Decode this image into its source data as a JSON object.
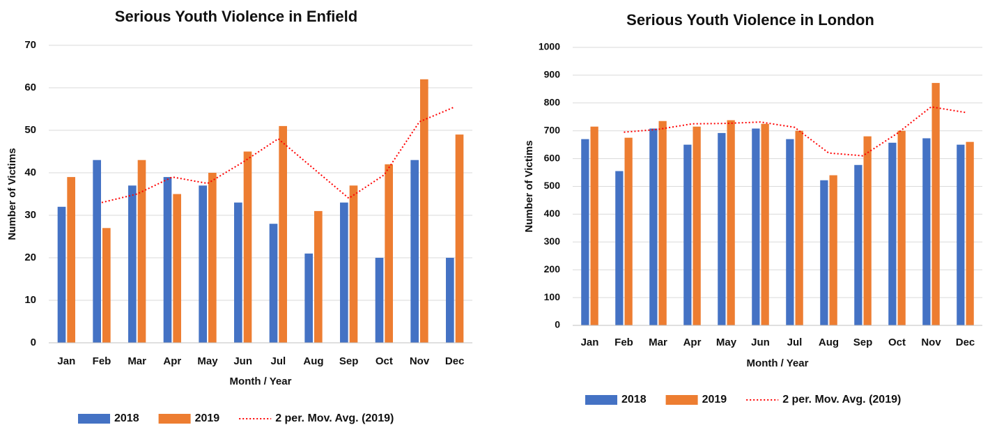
{
  "chart_data": [
    {
      "type": "bar",
      "title": "Serious Youth Violence in Enfield",
      "x_label": "Month / Year",
      "y_label": "Number of Victims",
      "categories": [
        "Jan",
        "Feb",
        "Mar",
        "Apr",
        "May",
        "Jun",
        "Jul",
        "Aug",
        "Sep",
        "Oct",
        "Nov",
        "Dec"
      ],
      "series": [
        {
          "name": "2018",
          "color": "#4472c4",
          "values": [
            32,
            43,
            37,
            39,
            37,
            33,
            28,
            21,
            33,
            20,
            43,
            20
          ]
        },
        {
          "name": "2019",
          "color": "#ed7d31",
          "values": [
            39,
            27,
            43,
            35,
            40,
            45,
            51,
            31,
            37,
            42,
            62,
            49
          ]
        },
        {
          "name": "2 per. Mov. Avg. (2019)",
          "type": "line",
          "dash": "dotted",
          "color": "#ff0000",
          "values": [
            null,
            33,
            35,
            39,
            37.5,
            42.5,
            48,
            41,
            34,
            39.5,
            52,
            55.5
          ]
        }
      ],
      "ylim": [
        0,
        70
      ],
      "yticks": [
        0,
        10,
        20,
        30,
        40,
        50,
        60,
        70
      ],
      "grid": true,
      "legend": "bottom"
    },
    {
      "type": "bar",
      "title": "Serious Youth Violence in London",
      "x_label": "Month / Year",
      "y_label": "Number of Victims",
      "categories": [
        "Jan",
        "Feb",
        "Mar",
        "Apr",
        "May",
        "Jun",
        "Jul",
        "Aug",
        "Sep",
        "Oct",
        "Nov",
        "Dec"
      ],
      "series": [
        {
          "name": "2018",
          "color": "#4472c4",
          "values": [
            670,
            555,
            708,
            650,
            692,
            708,
            670,
            522,
            577,
            657,
            673,
            650
          ]
        },
        {
          "name": "2019",
          "color": "#ed7d31",
          "values": [
            715,
            675,
            735,
            715,
            738,
            725,
            700,
            540,
            680,
            700,
            872,
            660
          ]
        },
        {
          "name": "2 per. Mov. Avg. (2019)",
          "type": "line",
          "dash": "dotted",
          "color": "#ff0000",
          "values": [
            null,
            695,
            705,
            725,
            726.5,
            731.5,
            712.5,
            620,
            610,
            690,
            786,
            766
          ]
        }
      ],
      "ylim": [
        0,
        1000
      ],
      "yticks": [
        0,
        100,
        200,
        300,
        400,
        500,
        600,
        700,
        800,
        900,
        1000
      ],
      "grid": true,
      "legend": "bottom"
    }
  ]
}
